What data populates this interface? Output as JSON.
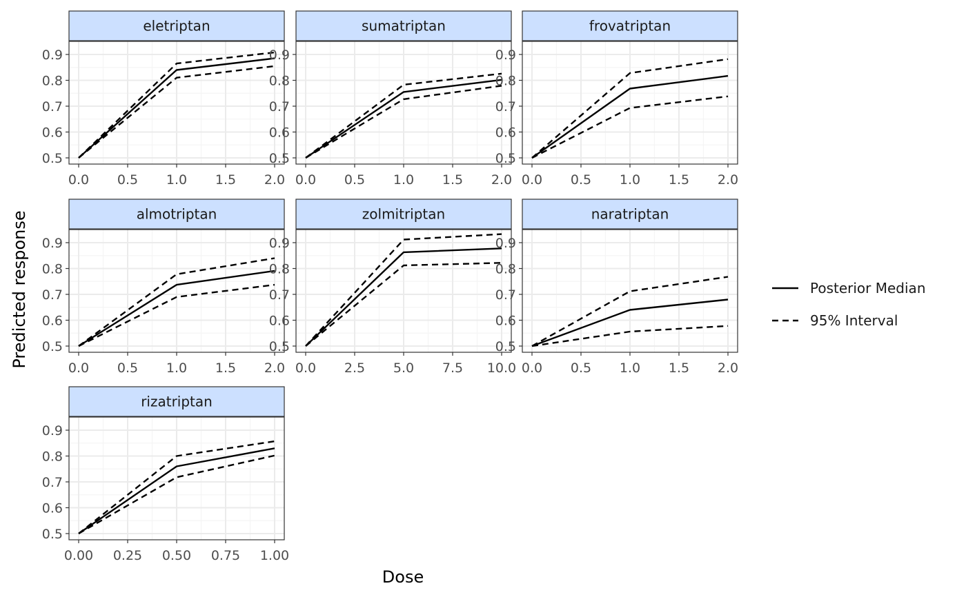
{
  "chart_data": {
    "type": "line",
    "xlabel": "Dose",
    "ylabel": "Predicted response",
    "legend": {
      "placement": "right",
      "entries": [
        {
          "label": "Posterior Median",
          "linetype": "solid"
        },
        {
          "label": "95% Interval",
          "linetype": "dashed"
        }
      ]
    },
    "ylim": [
      0.5,
      0.95
    ],
    "y_ticks": [
      "0.5",
      "0.6",
      "0.7",
      "0.8",
      "0.9"
    ],
    "grid": true,
    "panels": [
      {
        "title": "eletriptan",
        "xlim": [
          0,
          2
        ],
        "x_ticks": [
          "0.0",
          "0.5",
          "1.0",
          "1.5",
          "2.0"
        ],
        "x": [
          0,
          1,
          2
        ],
        "series": [
          {
            "name": "Posterior Median",
            "values": [
              0.5,
              0.84,
              0.885
            ]
          },
          {
            "name": "95% Interval",
            "values": [
              0.5,
              0.865,
              0.908
            ]
          },
          {
            "name": "95% Interval",
            "values": [
              0.5,
              0.81,
              0.855
            ]
          }
        ]
      },
      {
        "title": "sumatriptan",
        "xlim": [
          0,
          2
        ],
        "x_ticks": [
          "0.0",
          "0.5",
          "1.0",
          "1.5",
          "2.0"
        ],
        "x": [
          0,
          1,
          2
        ],
        "series": [
          {
            "name": "Posterior Median",
            "values": [
              0.5,
              0.755,
              0.802
            ]
          },
          {
            "name": "95% Interval",
            "values": [
              0.5,
              0.783,
              0.826
            ]
          },
          {
            "name": "95% Interval",
            "values": [
              0.5,
              0.727,
              0.779
            ]
          }
        ]
      },
      {
        "title": "frovatriptan",
        "xlim": [
          0,
          2
        ],
        "x_ticks": [
          "0.0",
          "0.5",
          "1.0",
          "1.5",
          "2.0"
        ],
        "x": [
          0,
          1,
          2
        ],
        "series": [
          {
            "name": "Posterior Median",
            "values": [
              0.5,
              0.768,
              0.817
            ]
          },
          {
            "name": "95% Interval",
            "values": [
              0.5,
              0.828,
              0.882
            ]
          },
          {
            "name": "95% Interval",
            "values": [
              0.5,
              0.693,
              0.738
            ]
          }
        ]
      },
      {
        "title": "almotriptan",
        "xlim": [
          0,
          2
        ],
        "x_ticks": [
          "0.0",
          "0.5",
          "1.0",
          "1.5",
          "2.0"
        ],
        "x": [
          0,
          1,
          2
        ],
        "series": [
          {
            "name": "Posterior Median",
            "values": [
              0.5,
              0.737,
              0.791
            ]
          },
          {
            "name": "95% Interval",
            "values": [
              0.5,
              0.778,
              0.84
            ]
          },
          {
            "name": "95% Interval",
            "values": [
              0.5,
              0.69,
              0.737
            ]
          }
        ]
      },
      {
        "title": "zolmitriptan",
        "xlim": [
          0,
          10
        ],
        "x_ticks": [
          "0.0",
          "2.5",
          "5.0",
          "7.5",
          "10.0"
        ],
        "x": [
          0,
          5,
          10
        ],
        "series": [
          {
            "name": "Posterior Median",
            "values": [
              0.5,
              0.863,
              0.878
            ]
          },
          {
            "name": "95% Interval",
            "values": [
              0.5,
              0.912,
              0.933
            ]
          },
          {
            "name": "95% Interval",
            "values": [
              0.5,
              0.812,
              0.822
            ]
          }
        ]
      },
      {
        "title": "naratriptan",
        "xlim": [
          0,
          2
        ],
        "x_ticks": [
          "0.0",
          "0.5",
          "1.0",
          "1.5",
          "2.0"
        ],
        "x": [
          0,
          1,
          2
        ],
        "series": [
          {
            "name": "Posterior Median",
            "values": [
              0.5,
              0.64,
              0.68
            ]
          },
          {
            "name": "95% Interval",
            "values": [
              0.5,
              0.712,
              0.768
            ]
          },
          {
            "name": "95% Interval",
            "values": [
              0.5,
              0.556,
              0.578
            ]
          }
        ]
      },
      {
        "title": "rizatriptan",
        "xlim": [
          0,
          1
        ],
        "x_ticks": [
          "0.00",
          "0.25",
          "0.50",
          "0.75",
          "1.00"
        ],
        "x": [
          0,
          0.5,
          1
        ],
        "series": [
          {
            "name": "Posterior Median",
            "values": [
              0.5,
              0.76,
              0.83
            ]
          },
          {
            "name": "95% Interval",
            "values": [
              0.5,
              0.8,
              0.857
            ]
          },
          {
            "name": "95% Interval",
            "values": [
              0.5,
              0.718,
              0.802
            ]
          }
        ]
      }
    ]
  },
  "colors": {
    "strip_fill": "#cce0ff",
    "strip_border": "#333333",
    "line": "#000000",
    "grid_major": "#ebebeb",
    "grid_minor": "#f5f5f5",
    "panel_border": "#333333",
    "tick_text": "#4d4d4d"
  }
}
